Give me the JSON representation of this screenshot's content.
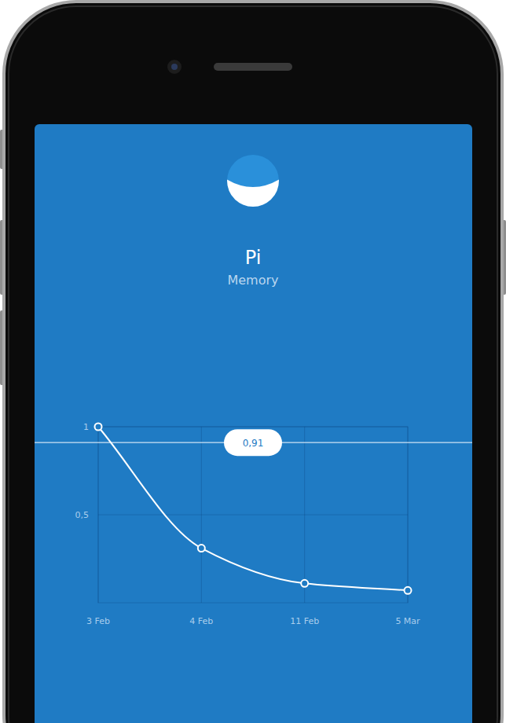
{
  "chart_data": {
    "type": "line",
    "title": "Pi",
    "subtitle": "Memory",
    "categories": [
      "3 Feb",
      "4 Feb",
      "11 Feb",
      "5 Mar"
    ],
    "values": [
      1,
      0.31,
      0.11,
      0.07
    ],
    "color": "#ffffff",
    "marker": "hollow",
    "line_style": "smooth",
    "ylim": [
      0,
      1
    ],
    "yticks": [
      {
        "value": 0.5,
        "label": "0,5"
      },
      1
    ],
    "grid": true,
    "annotations": [
      {
        "value": 0.91,
        "label": "0,91"
      }
    ]
  }
}
